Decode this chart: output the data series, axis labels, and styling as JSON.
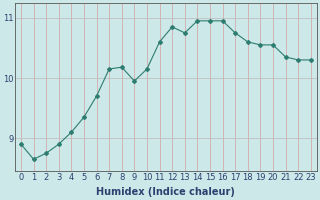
{
  "x": [
    0,
    1,
    2,
    3,
    4,
    5,
    6,
    7,
    8,
    9,
    10,
    11,
    12,
    13,
    14,
    15,
    16,
    17,
    18,
    19,
    20,
    21,
    22,
    23
  ],
  "y": [
    8.9,
    8.65,
    8.75,
    8.9,
    9.1,
    9.35,
    9.7,
    10.15,
    10.18,
    9.95,
    10.15,
    10.6,
    10.85,
    10.75,
    10.95,
    10.95,
    10.95,
    10.75,
    10.6,
    10.55,
    10.55,
    10.35,
    10.3,
    10.3
  ],
  "line_color": "#2e7d70",
  "marker": "D",
  "marker_size": 2,
  "bg_color": "#cce8e8",
  "vgrid_color": "#d4a0a0",
  "hgrid_color": "#c0b8b8",
  "xlabel": "Humidex (Indice chaleur)",
  "ylim": [
    8.45,
    11.25
  ],
  "xlim": [
    -0.5,
    23.5
  ],
  "yticks": [
    9,
    10,
    11
  ],
  "xticks": [
    0,
    1,
    2,
    3,
    4,
    5,
    6,
    7,
    8,
    9,
    10,
    11,
    12,
    13,
    14,
    15,
    16,
    17,
    18,
    19,
    20,
    21,
    22,
    23
  ],
  "tick_fontsize": 6,
  "xlabel_fontsize": 7,
  "tick_color": "#2e4070",
  "spine_color": "#555555"
}
